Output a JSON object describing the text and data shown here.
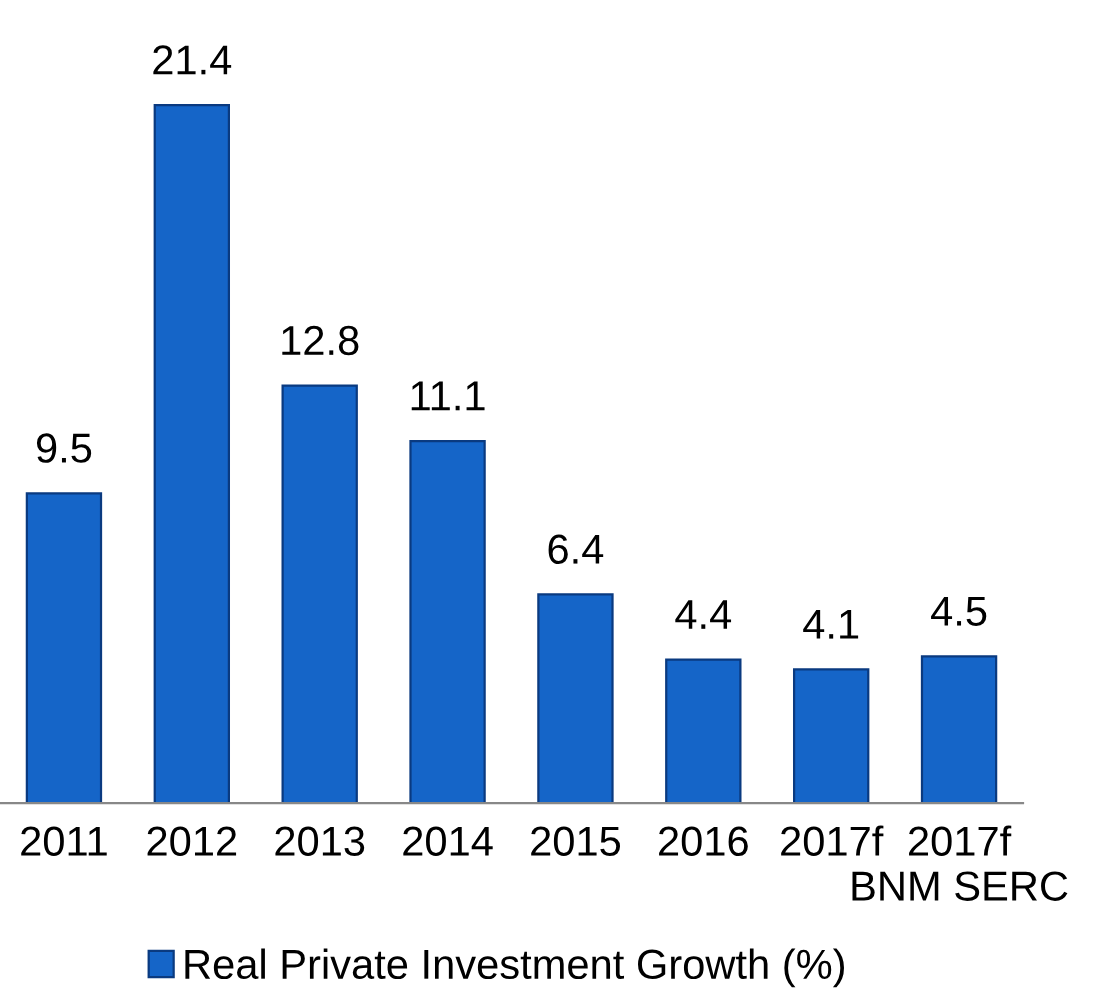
{
  "chart_data": {
    "type": "bar",
    "categories": [
      "2011",
      "2012",
      "2013",
      "2014",
      "2015",
      "2016",
      "2017f",
      "2017f\nBNM SERC"
    ],
    "series": [
      {
        "name": "Real Private Investment Growth (%)",
        "color": "#1565c8",
        "values": [
          9.5,
          21.4,
          12.8,
          11.1,
          6.4,
          4.4,
          4.1,
          4.5
        ]
      }
    ],
    "data_labels": true,
    "tick_labels": "x",
    "grid": false,
    "legend": "bottom"
  }
}
